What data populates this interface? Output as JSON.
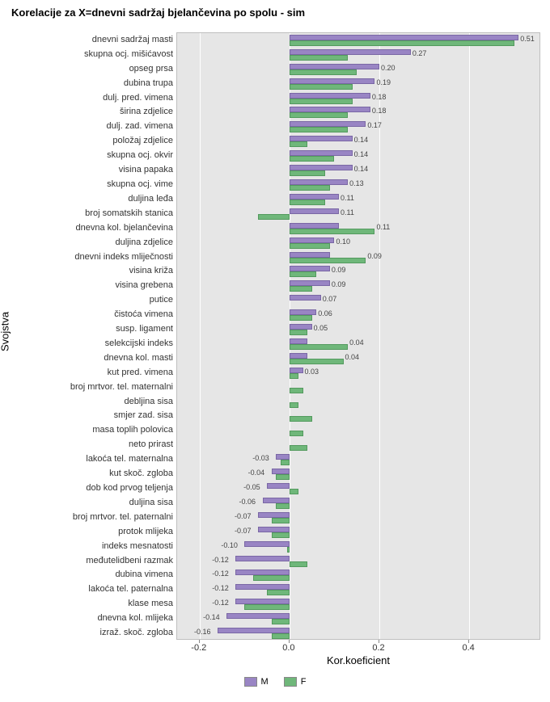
{
  "chart": {
    "type": "grouped-horizontal-bar",
    "title": "Korelacije za X=dnevni sadržaj bjelančevina po spolu - sim",
    "x_axis_label": "Kor.koeficient",
    "y_axis_label": "Svojstva",
    "xlim": [
      -0.25,
      0.56
    ],
    "x_ticks": [
      -0.2,
      0.0,
      0.2,
      0.4
    ],
    "x_tick_labels": [
      "-0.2",
      "0.0",
      "0.2",
      "0.4"
    ],
    "plot_bg": "#e6e6e6",
    "grid_color": "#ffffff",
    "colors": {
      "M": "#9985c4",
      "F": "#6fb77a"
    },
    "legend_labels": {
      "M": "M",
      "F": "F"
    },
    "label_fontsize": 11,
    "title_fontsize": 13,
    "categories": [
      {
        "label": "dnevni sadržaj masti",
        "m": 0.51,
        "f": 0.5,
        "value_label": "0.51"
      },
      {
        "label": "skupna ocj. mišićavost",
        "m": 0.27,
        "f": 0.13,
        "value_label": "0.27"
      },
      {
        "label": "opseg prsa",
        "m": 0.2,
        "f": 0.15,
        "value_label": "0.20"
      },
      {
        "label": "dubina trupa",
        "m": 0.19,
        "f": 0.14,
        "value_label": "0.19"
      },
      {
        "label": "dulj. pred. vimena",
        "m": 0.18,
        "f": 0.14,
        "value_label": "0.18"
      },
      {
        "label": "širina zdjelice",
        "m": 0.18,
        "f": 0.13,
        "value_label": "0.18"
      },
      {
        "label": "dulj. zad. vimena",
        "m": 0.17,
        "f": 0.13,
        "value_label": "0.17"
      },
      {
        "label": "položaj zdjelice",
        "m": 0.14,
        "f": 0.04,
        "value_label": "0.14"
      },
      {
        "label": "skupna ocj. okvir",
        "m": 0.14,
        "f": 0.1,
        "value_label": "0.14"
      },
      {
        "label": "visina papaka",
        "m": 0.14,
        "f": 0.08,
        "value_label": "0.14"
      },
      {
        "label": "skupna ocj. vime",
        "m": 0.13,
        "f": 0.09,
        "value_label": "0.13"
      },
      {
        "label": "duljina leđa",
        "m": 0.11,
        "f": 0.08,
        "value_label": "0.11"
      },
      {
        "label": "broj somatskih stanica",
        "m": 0.11,
        "f": -0.07,
        "value_label": "0.11"
      },
      {
        "label": "dnevna kol. bjelančevina",
        "m": 0.11,
        "f": 0.19,
        "value_label": "0.11"
      },
      {
        "label": "duljina zdjelice",
        "m": 0.1,
        "f": 0.09,
        "value_label": "0.10"
      },
      {
        "label": "dnevni indeks mliječnosti",
        "m": 0.09,
        "f": 0.17,
        "value_label": "0.09"
      },
      {
        "label": "visina križa",
        "m": 0.09,
        "f": 0.06,
        "value_label": "0.09"
      },
      {
        "label": "visina grebena",
        "m": 0.09,
        "f": 0.05,
        "value_label": "0.09"
      },
      {
        "label": "putice",
        "m": 0.07,
        "f": null,
        "value_label": "0.07"
      },
      {
        "label": "čistoća vimena",
        "m": 0.06,
        "f": 0.05,
        "value_label": "0.06"
      },
      {
        "label": "susp. ligament",
        "m": 0.05,
        "f": 0.04,
        "value_label": "0.05"
      },
      {
        "label": "selekcijski indeks",
        "m": 0.04,
        "f": 0.13,
        "value_label": "0.04"
      },
      {
        "label": "dnevna kol. masti",
        "m": 0.04,
        "f": 0.12,
        "value_label": "0.04"
      },
      {
        "label": "kut pred. vimena",
        "m": 0.03,
        "f": 0.02,
        "value_label": "0.03"
      },
      {
        "label": "broj mrtvor. tel. maternalni",
        "m": null,
        "f": 0.03,
        "value_label": null
      },
      {
        "label": "debljina sisa",
        "m": null,
        "f": 0.02,
        "value_label": null
      },
      {
        "label": "smjer zad. sisa",
        "m": null,
        "f": 0.05,
        "value_label": null
      },
      {
        "label": "masa toplih polovica",
        "m": null,
        "f": 0.03,
        "value_label": null
      },
      {
        "label": "neto prirast",
        "m": null,
        "f": 0.04,
        "value_label": null
      },
      {
        "label": "lakoća tel. maternalna",
        "m": -0.03,
        "f": -0.02,
        "value_label": "-0.03"
      },
      {
        "label": "kut skoč. zgloba",
        "m": -0.04,
        "f": -0.03,
        "value_label": "-0.04"
      },
      {
        "label": "dob kod prvog teljenja",
        "m": -0.05,
        "f": 0.02,
        "value_label": "-0.05"
      },
      {
        "label": "duljina sisa",
        "m": -0.06,
        "f": -0.03,
        "value_label": "-0.06"
      },
      {
        "label": "broj mrtvor. tel. paternalni",
        "m": -0.07,
        "f": -0.04,
        "value_label": "-0.07"
      },
      {
        "label": "protok mlijeka",
        "m": -0.07,
        "f": -0.04,
        "value_label": "-0.07"
      },
      {
        "label": "indeks mesnatosti",
        "m": -0.1,
        "f": -0.005,
        "value_label": "-0.10"
      },
      {
        "label": "međutelidbeni razmak",
        "m": -0.12,
        "f": 0.04,
        "value_label": "-0.12"
      },
      {
        "label": "dubina vimena",
        "m": -0.12,
        "f": -0.08,
        "value_label": "-0.12"
      },
      {
        "label": "lakoća tel. paternalna",
        "m": -0.12,
        "f": -0.05,
        "value_label": "-0.12"
      },
      {
        "label": "klase mesa",
        "m": -0.12,
        "f": -0.1,
        "value_label": "-0.12"
      },
      {
        "label": "dnevna kol. mlijeka",
        "m": -0.14,
        "f": -0.04,
        "value_label": "-0.14"
      },
      {
        "label": "izraž. skoč. zgloba",
        "m": -0.16,
        "f": -0.04,
        "value_label": "-0.16"
      }
    ]
  }
}
